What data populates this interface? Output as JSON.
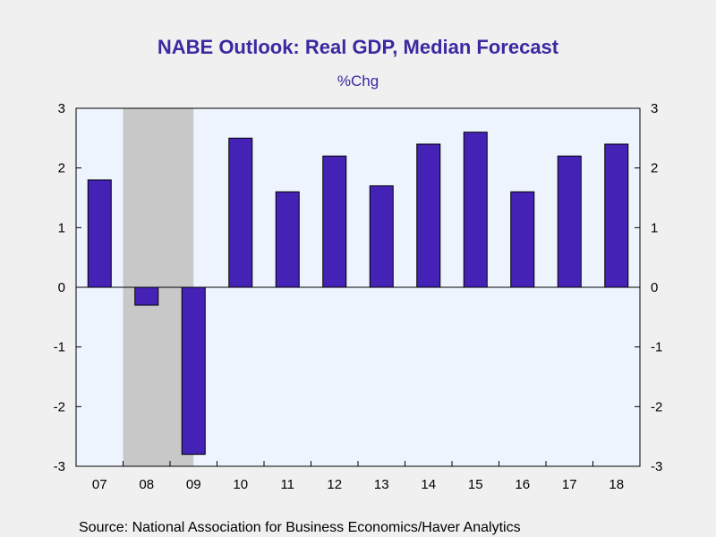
{
  "colors": {
    "background": "#f0f0f0",
    "plot_background": "#eef4fd",
    "recession_shade": "#c8c8c8",
    "bar_fill": "#4422b5",
    "bar_stroke": "#000000",
    "title": "#3c28a0"
  },
  "chart_data": {
    "type": "bar",
    "title": "NABE Outlook: Real GDP, Median Forecast",
    "subtitle": "%Chg",
    "xlabel": "",
    "ylabel": "",
    "categories": [
      "07",
      "08",
      "09",
      "10",
      "11",
      "12",
      "13",
      "14",
      "15",
      "16",
      "17",
      "18"
    ],
    "values": [
      1.8,
      -0.3,
      -2.8,
      2.5,
      1.6,
      2.2,
      1.7,
      2.4,
      2.6,
      1.6,
      2.2,
      2.4
    ],
    "ylim": [
      -3,
      3
    ],
    "yticks": [
      3,
      2,
      1,
      0,
      -1,
      -2,
      -3
    ],
    "ytick_labels": [
      "3",
      "2",
      "1",
      "0",
      "-1",
      "-2",
      "-3"
    ],
    "right_axis_mirrored": true,
    "recession_shading": {
      "from": "08",
      "to": "09"
    },
    "grid": false,
    "legend": "none",
    "zero_line": true
  },
  "source_note": "Source:  National Association for Business Economics/Haver Analytics"
}
